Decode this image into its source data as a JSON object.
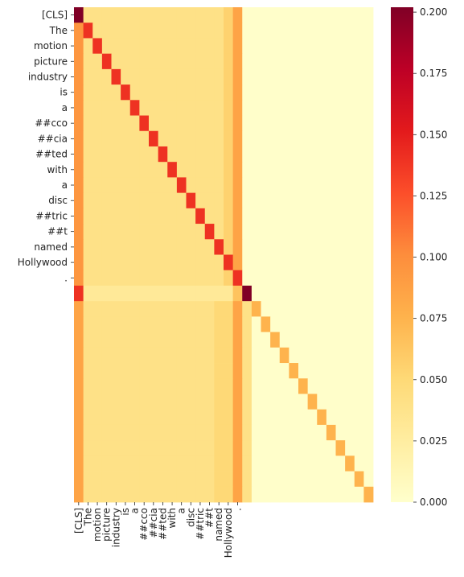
{
  "chart_data": {
    "type": "heatmap",
    "title": "",
    "xlabel": "",
    "ylabel": "",
    "tokens": [
      "[CLS]",
      "The",
      "motion",
      "picture",
      "industry",
      "is",
      "a",
      "##cco",
      "##cia",
      "##ted",
      "with",
      "a",
      "disc",
      "##tric",
      "##t",
      "named",
      "Hollywood",
      "."
    ],
    "n_rows": 32,
    "n_cols": 32,
    "padding_value": 0.001,
    "colorbar": {
      "range": [
        0,
        0.202
      ],
      "ticks": [
        0.0,
        0.025,
        0.05,
        0.075,
        0.1,
        0.125,
        0.15,
        0.175,
        0.2
      ],
      "tick_labels": [
        "0.000",
        "0.025",
        "0.050",
        "0.075",
        "0.100",
        "0.125",
        "0.150",
        "0.175",
        "0.200"
      ],
      "colormap": "YlOrRd",
      "colormap_stops": [
        "#ffffcc",
        "#ffeda0",
        "#fed976",
        "#feb24c",
        "#fd8d3c",
        "#fc4e2a",
        "#e31a1c",
        "#bd0026",
        "#800026"
      ]
    },
    "token_rows": {
      "first_col": 0.095,
      "other_cols": 0.04,
      "diagonal": 0.14,
      "special_cols": {
        "16": 0.055,
        "17": 0.085
      },
      "overrides": [
        {
          "row": 0,
          "col": 0,
          "value": 0.202
        }
      ]
    },
    "sep_row": {
      "row": 18,
      "first_col": 0.14,
      "other_cols": 0.03,
      "col_17": 0.065,
      "diagonal": 0.202
    },
    "pad_rows": {
      "first_col": 0.085,
      "other_cols": 0.04,
      "cols_15_16": 0.05,
      "col_17": 0.085,
      "diagonal": 0.075
    }
  }
}
